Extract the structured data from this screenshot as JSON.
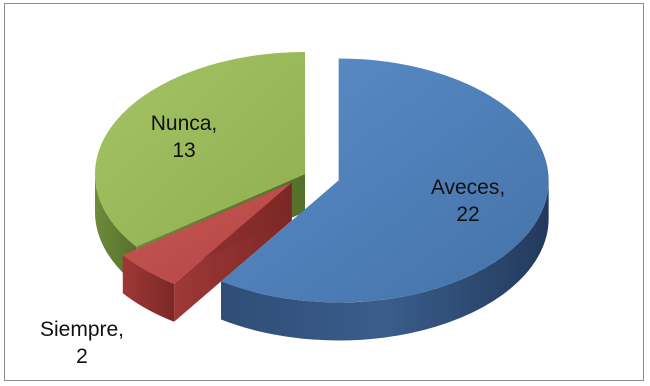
{
  "chart_data": {
    "type": "pie",
    "style": "3d-exploded",
    "title": "",
    "slices": [
      {
        "label": "Aveces",
        "value": 22,
        "color": "#4f81bd"
      },
      {
        "label": "Siempre",
        "value": 2,
        "color": "#c0504d"
      },
      {
        "label": "Nunca",
        "value": 13,
        "color": "#9bbb59"
      }
    ],
    "legend": "none",
    "data_labels": "category-and-value"
  }
}
